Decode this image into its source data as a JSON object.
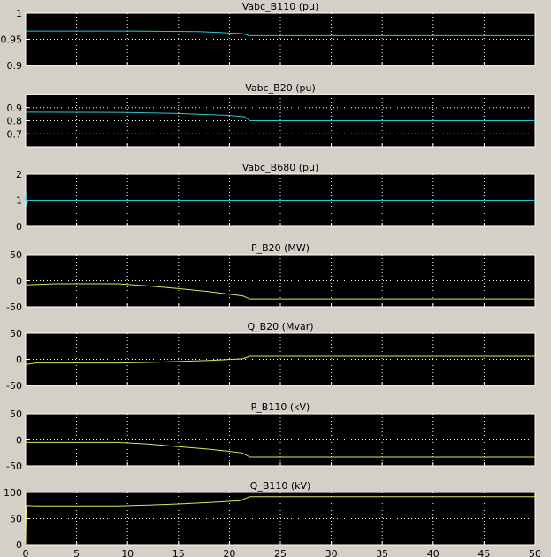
{
  "window": {
    "background": "#d4d0c8",
    "plot_background": "#000000",
    "grid_color": "#ffffff",
    "axis_color": "#ffffff"
  },
  "x_axis": {
    "ticks": [
      0,
      5,
      10,
      15,
      20,
      25,
      30,
      35,
      40,
      45,
      50
    ],
    "xlim": [
      0,
      50
    ]
  },
  "chart_data": [
    {
      "type": "line",
      "title": "Vabc_B110 (pu)",
      "ylim": [
        0.9,
        1.0
      ],
      "yticks": [
        0.9,
        0.95,
        1
      ],
      "ytick_labels": [
        "0.9",
        "0.95",
        "1"
      ],
      "series": [
        {
          "color": "#29c8d4",
          "x": [
            0,
            10,
            17,
            19,
            21.2,
            22,
            50
          ],
          "y": [
            0.966,
            0.966,
            0.965,
            0.963,
            0.961,
            0.957,
            0.957
          ]
        }
      ]
    },
    {
      "type": "line",
      "title": "Vabc_B20 (pu)",
      "ylim": [
        0.6,
        1.0
      ],
      "yticks": [
        0.7,
        0.8,
        0.9
      ],
      "ytick_labels": [
        "0.7",
        "0.8",
        "0.9"
      ],
      "series": [
        {
          "color": "#29c8d4",
          "x": [
            0,
            10,
            15,
            20,
            21.5,
            22,
            50
          ],
          "y": [
            0.865,
            0.863,
            0.855,
            0.84,
            0.83,
            0.8,
            0.8
          ]
        }
      ]
    },
    {
      "type": "line",
      "title": "Vabc_B680 (pu)",
      "ylim": [
        0,
        2
      ],
      "yticks": [
        0,
        1,
        2
      ],
      "ytick_labels": [
        "0",
        "1",
        "2"
      ],
      "series": [
        {
          "color": "#29c8d4",
          "x": [
            0,
            0.05,
            0.1,
            0.2,
            50
          ],
          "y": [
            1.0,
            1.3,
            0.75,
            1.0,
            1.0
          ]
        }
      ]
    },
    {
      "type": "line",
      "title": "P_B20 (MW)",
      "ylim": [
        -50,
        50
      ],
      "yticks": [
        -50,
        0,
        50
      ],
      "ytick_labels": [
        "-50",
        "0",
        "50"
      ],
      "series": [
        {
          "color": "#e3e35a",
          "x": [
            0,
            3,
            9,
            12,
            15,
            18,
            21.3,
            22,
            50
          ],
          "y": [
            -8,
            -6,
            -6,
            -10,
            -15,
            -21,
            -29,
            -35,
            -35
          ]
        }
      ]
    },
    {
      "type": "line",
      "title": "Q_B20 (Mvar)",
      "ylim": [
        -50,
        50
      ],
      "yticks": [
        -50,
        0,
        50
      ],
      "ytick_labels": [
        "-50",
        "0",
        "50"
      ],
      "series": [
        {
          "color": "#e3e35a",
          "x": [
            0,
            1,
            9,
            12,
            15,
            18,
            21.3,
            22,
            50
          ],
          "y": [
            -10,
            -7,
            -7,
            -6,
            -4,
            -2,
            1,
            6,
            6
          ]
        }
      ]
    },
    {
      "type": "line",
      "title": "P_B110 (kV)",
      "ylim": [
        -50,
        50
      ],
      "yticks": [
        -50,
        0,
        50
      ],
      "ytick_labels": [
        "-50",
        "0",
        "50"
      ],
      "series": [
        {
          "color": "#e3e35a",
          "x": [
            0,
            9,
            12,
            15,
            18,
            21.3,
            22,
            50
          ],
          "y": [
            -5,
            -5,
            -8,
            -13,
            -18,
            -25,
            -33,
            -33
          ]
        }
      ]
    },
    {
      "type": "line",
      "title": "Q_B110 (kV)",
      "ylim": [
        0,
        100
      ],
      "yticks": [
        0,
        50,
        100
      ],
      "ytick_labels": [
        "0",
        "50",
        "100"
      ],
      "series": [
        {
          "color": "#e3e35a",
          "x": [
            0,
            0.05,
            0.1,
            1,
            9,
            12,
            15,
            18,
            21,
            22,
            50
          ],
          "y": [
            0,
            72,
            75,
            74,
            74,
            76,
            78,
            81,
            84,
            92,
            92
          ]
        }
      ]
    }
  ]
}
